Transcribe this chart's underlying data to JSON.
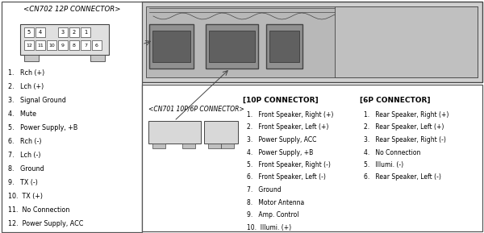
{
  "bg_color": "#ffffff",
  "line_color": "#444444",
  "text_color": "#000000",
  "cn702_title": "<CN702 12P CONNECTOR>",
  "cn702_labels": [
    "1.   Rch (+)",
    "2.   Lch (+)",
    "3.   Signal Ground",
    "4.   Mute",
    "5.   Power Supply, +B",
    "6.   Rch (-)",
    "7.   Lch (-)",
    "8.   Ground",
    "9.   TX (-)",
    "10.  TX (+)",
    "11.  No Connection",
    "12.  Power Supply, ACC"
  ],
  "cn701_title": "<CN701 10P/6P CONNECTOR>",
  "p10_title": "[10P CONNECTOR]",
  "p10_labels": [
    "1.   Front Speaker, Right (+)",
    "2.   Front Speaker, Left (+)",
    "3.   Power Supply, ACC",
    "4.   Power Supply, +B",
    "5.   Front Speaker, Right (-)",
    "6.   Front Speaker, Left (-)",
    "7.   Ground",
    "8.   Motor Antenna",
    "9.   Amp. Control",
    "10.  Illumi. (+)"
  ],
  "p6_title": "[6P CONNECTOR]",
  "p6_labels": [
    "1.   Rear Speaker, Right (+)",
    "2.   Rear Speaker, Left (+)",
    "3.   Rear Speaker, Right (-)",
    "4.   No Connection",
    "5.   Illumi. (-)",
    "6.   Rear Speaker, Left (-)"
  ]
}
